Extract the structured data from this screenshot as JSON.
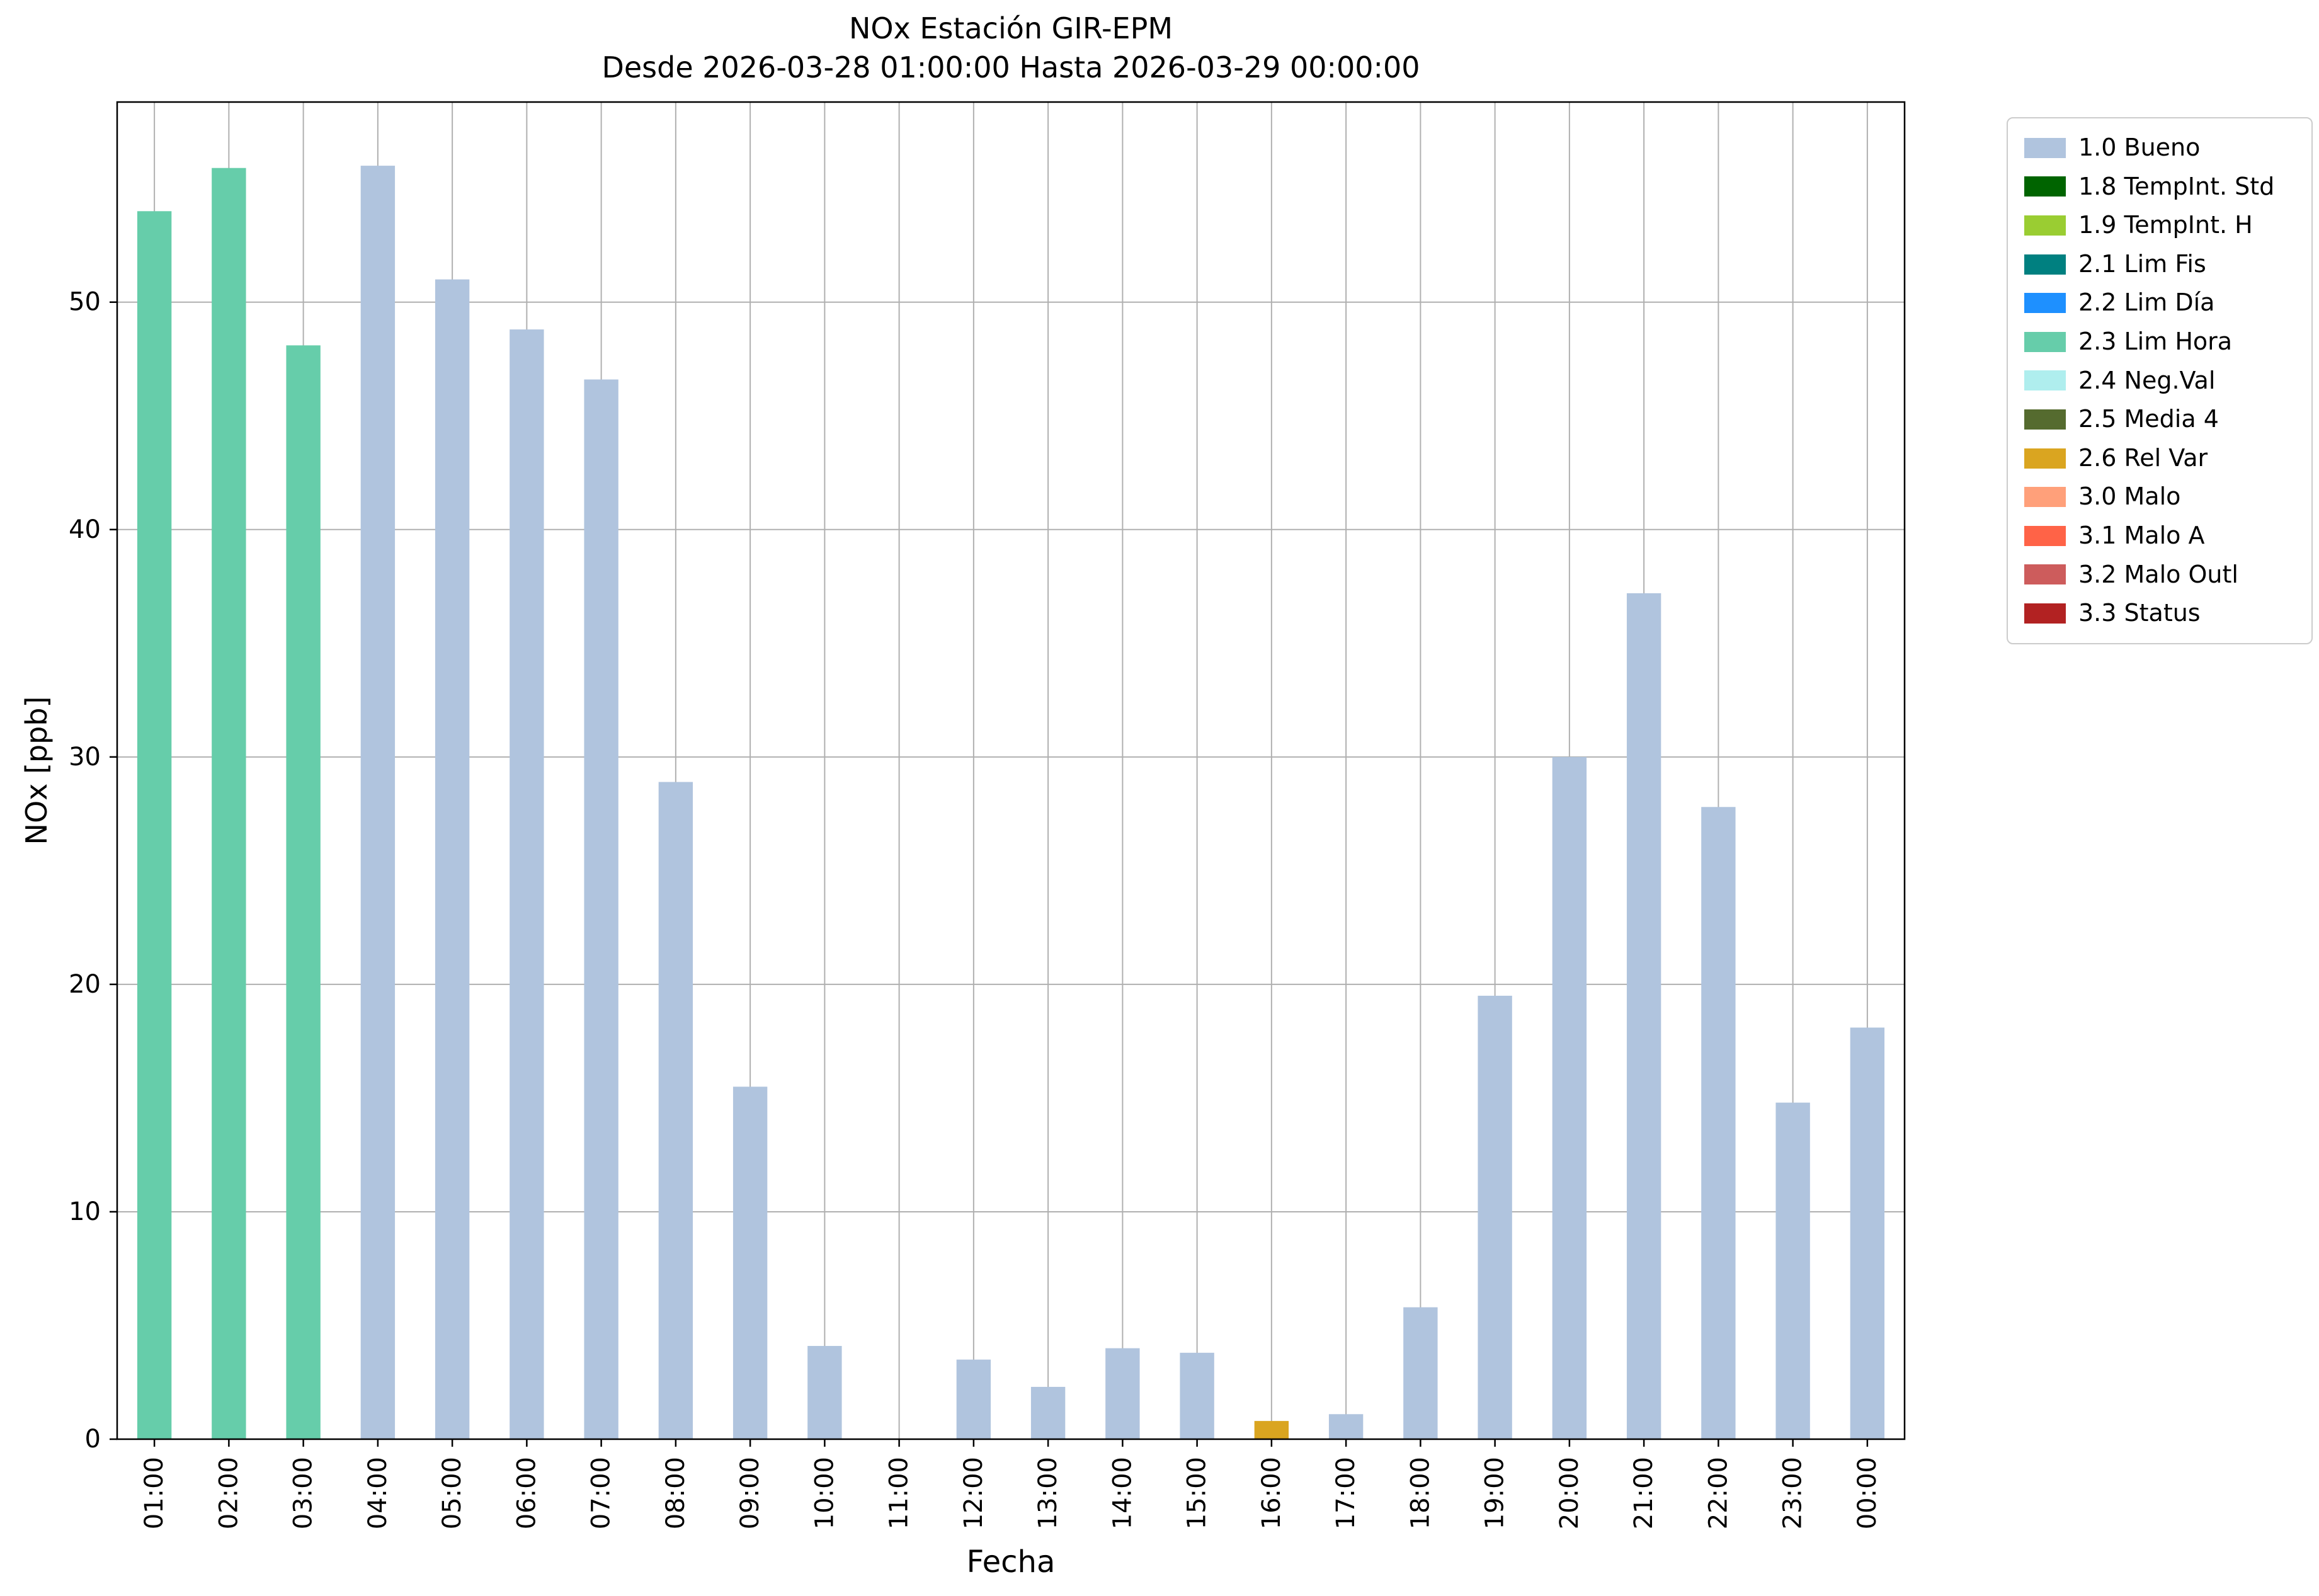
{
  "chart_data": {
    "type": "bar",
    "title": "NOx Estación GIR-EPM",
    "subtitle": "Desde 2026-03-28 01:00:00 Hasta 2026-03-29 00:00:00",
    "xlabel": "Fecha",
    "ylabel": "NOx [ppb]",
    "ylim": [
      0,
      58.8
    ],
    "yticks": [
      0,
      10,
      20,
      30,
      40,
      50
    ],
    "grid": true,
    "legend_position": "upper right outside",
    "categories": [
      "01:00",
      "02:00",
      "03:00",
      "04:00",
      "05:00",
      "06:00",
      "07:00",
      "08:00",
      "09:00",
      "10:00",
      "11:00",
      "12:00",
      "13:00",
      "14:00",
      "15:00",
      "16:00",
      "17:00",
      "18:00",
      "19:00",
      "20:00",
      "21:00",
      "22:00",
      "23:00",
      "00:00"
    ],
    "values": [
      54.0,
      55.9,
      48.1,
      56.0,
      51.0,
      48.8,
      46.6,
      28.9,
      15.5,
      4.1,
      0,
      3.5,
      2.3,
      4.0,
      3.8,
      0.8,
      1.1,
      5.8,
      19.5,
      30.0,
      37.2,
      27.8,
      14.8,
      18.1
    ],
    "bar_status": [
      "2.3 Lim Hora",
      "2.3 Lim Hora",
      "2.3 Lim Hora",
      "1.0 Bueno",
      "1.0 Bueno",
      "1.0 Bueno",
      "1.0 Bueno",
      "1.0 Bueno",
      "1.0 Bueno",
      "1.0 Bueno",
      "1.0 Bueno",
      "1.0 Bueno",
      "1.0 Bueno",
      "1.0 Bueno",
      "1.0 Bueno",
      "2.6 Rel Var",
      "1.0 Bueno",
      "1.0 Bueno",
      "1.0 Bueno",
      "1.0 Bueno",
      "1.0 Bueno",
      "1.0 Bueno",
      "1.0 Bueno",
      "1.0 Bueno"
    ],
    "legend": [
      {
        "label": "1.0 Bueno",
        "color": "#b0c4de"
      },
      {
        "label": "1.8 TempInt. Std",
        "color": "#006400"
      },
      {
        "label": "1.9 TempInt. H",
        "color": "#9acd32"
      },
      {
        "label": "2.1 Lim Fis",
        "color": "#008080"
      },
      {
        "label": "2.2 Lim Día",
        "color": "#1e90ff"
      },
      {
        "label": "2.3 Lim Hora",
        "color": "#66cdaa"
      },
      {
        "label": "2.4 Neg.Val",
        "color": "#afeeee"
      },
      {
        "label": "2.5 Media 4",
        "color": "#556b2f"
      },
      {
        "label": "2.6 Rel Var",
        "color": "#daa520"
      },
      {
        "label": "3.0 Malo",
        "color": "#ffa07a"
      },
      {
        "label": "3.1 Malo A",
        "color": "#ff6347"
      },
      {
        "label": "3.2 Malo Outl",
        "color": "#cd5c5c"
      },
      {
        "label": "3.3 Status",
        "color": "#b22222"
      }
    ],
    "style": {
      "grid_color": "#b0b0b0",
      "axis_color": "#000000",
      "background": "#ffffff"
    }
  }
}
